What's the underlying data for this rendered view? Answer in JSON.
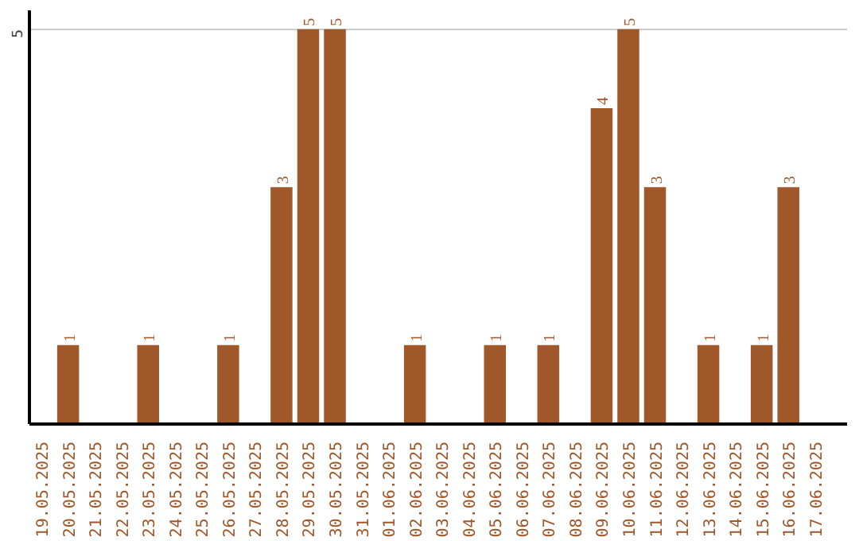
{
  "chart_data": {
    "type": "bar",
    "categories": [
      "19.05.2025",
      "20.05.2025",
      "21.05.2025",
      "22.05.2025",
      "23.05.2025",
      "24.05.2025",
      "25.05.2025",
      "26.05.2025",
      "27.05.2025",
      "28.05.2025",
      "29.05.2025",
      "30.05.2025",
      "31.05.2025",
      "01.06.2025",
      "02.06.2025",
      "03.06.2025",
      "04.06.2025",
      "05.06.2025",
      "06.06.2025",
      "07.06.2025",
      "08.06.2025",
      "09.06.2025",
      "10.06.2025",
      "11.06.2025",
      "12.06.2025",
      "13.06.2025",
      "14.06.2025",
      "15.06.2025",
      "16.06.2025",
      "17.06.2025"
    ],
    "values": [
      0,
      1,
      0,
      0,
      1,
      0,
      0,
      1,
      0,
      3,
      5,
      5,
      0,
      0,
      1,
      0,
      0,
      1,
      0,
      1,
      0,
      4,
      5,
      3,
      0,
      1,
      0,
      1,
      3,
      0
    ],
    "value_labels": [
      null,
      "1",
      null,
      null,
      "1",
      null,
      null,
      "1",
      null,
      "3",
      "5",
      "5",
      null,
      null,
      "1",
      null,
      null,
      "1",
      null,
      "1",
      null,
      "4",
      "5",
      "3",
      null,
      "1",
      null,
      "1",
      "3",
      null
    ],
    "color": "#a0572a",
    "ylim": [
      0,
      5.24
    ],
    "yticks": [
      5
    ],
    "grid": "y"
  }
}
